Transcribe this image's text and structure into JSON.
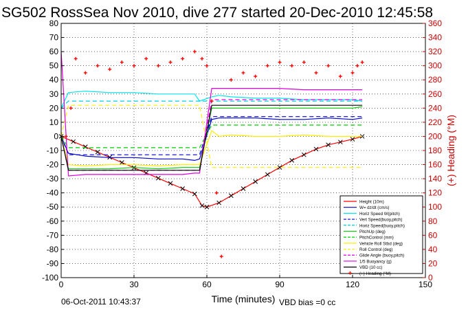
{
  "chart_data": {
    "type": "line",
    "title": "SG502 RossSea Nov 2010, dive 277 started 20-Dec-2010 12:45:58",
    "xlabel": "Time (minutes)",
    "ylabel": "",
    "y2label": "(+) Heading (°M)",
    "xlim": [
      0,
      150
    ],
    "ylim": [
      -100,
      80
    ],
    "y2lim": [
      0,
      360
    ],
    "xticks": [
      "0",
      "30",
      "60",
      "90",
      "120",
      "150"
    ],
    "yticks": [
      "80",
      "70",
      "60",
      "50",
      "40",
      "30",
      "20",
      "10",
      "0",
      "-10",
      "-20",
      "-30",
      "-40",
      "-50",
      "-60",
      "-70",
      "-80",
      "-90",
      "-100"
    ],
    "y2ticks": [
      "360",
      "340",
      "320",
      "300",
      "280",
      "260",
      "240",
      "220",
      "200",
      "180",
      "160",
      "140",
      "120",
      "100",
      "80",
      "60",
      "40",
      "20",
      "0"
    ],
    "grid": true,
    "legend_position": "bottom-right",
    "footer_left": "06-Oct-2011 10:43:37",
    "footer_right": "VBD bias =0 cc",
    "series": [
      {
        "name": "Height (10m)",
        "color": "#ff0000",
        "style": "solid-marker-x",
        "x": [
          0,
          5,
          10,
          15,
          20,
          25,
          30,
          35,
          40,
          45,
          50,
          55,
          58,
          60,
          65,
          70,
          75,
          80,
          85,
          90,
          95,
          100,
          105,
          110,
          115,
          120,
          124
        ],
        "y": [
          0,
          -3.7,
          -7.4,
          -11.1,
          -14.8,
          -18.5,
          -22.2,
          -25.9,
          -29.6,
          -33.3,
          -37.0,
          -40.7,
          -49,
          -50,
          -47,
          -42,
          -37,
          -32,
          -27,
          -22,
          -17,
          -13,
          -9,
          -6,
          -4,
          -2,
          0
        ]
      },
      {
        "name": "W= dz/dt (cm/s)",
        "color": "#0000cc",
        "style": "solid",
        "x": [
          0,
          3,
          10,
          20,
          30,
          40,
          50,
          55,
          57,
          62,
          65,
          70,
          80,
          90,
          100,
          110,
          120,
          124
        ],
        "y": [
          0,
          -12,
          -14,
          -15,
          -15,
          -16,
          -16,
          -17,
          -16,
          12,
          13,
          13,
          13,
          12,
          12,
          13,
          12,
          13
        ]
      },
      {
        "name": "Horiz Speed W(pitch)",
        "color": "#00e5ee",
        "style": "solid",
        "x": [
          0,
          3,
          10,
          20,
          30,
          40,
          50,
          55,
          57,
          62,
          65,
          70,
          80,
          90,
          100,
          110,
          120,
          124
        ],
        "y": [
          20,
          31,
          32,
          31,
          31,
          30,
          30,
          30,
          25,
          28,
          29,
          28,
          27,
          27,
          26,
          26,
          26,
          25
        ]
      },
      {
        "name": "Vert Speed(buoy,pitch)",
        "color": "#0000cc",
        "style": "dashed",
        "x": [
          0,
          3,
          10,
          20,
          30,
          40,
          50,
          55,
          57,
          62,
          65,
          70,
          80,
          90,
          100,
          110,
          120,
          124
        ],
        "y": [
          0,
          -13,
          -13,
          -13,
          -13,
          -13,
          -13,
          -13,
          -13,
          14,
          14,
          14,
          14,
          14,
          14,
          14,
          14,
          14
        ]
      },
      {
        "name": "Horiz Speed(buoy,pitch)",
        "color": "#00ccdd",
        "style": "dashed",
        "x": [
          0,
          3,
          10,
          20,
          30,
          40,
          50,
          55,
          57,
          62,
          65,
          70,
          80,
          90,
          100,
          110,
          120,
          124
        ],
        "y": [
          20,
          25,
          25,
          25,
          25,
          25,
          25,
          25,
          25,
          25,
          25,
          25,
          25,
          25,
          25,
          25,
          25,
          25
        ]
      },
      {
        "name": "PitchUp (deg)",
        "color": "#00cc00",
        "style": "solid",
        "x": [
          0,
          3,
          10,
          20,
          30,
          40,
          50,
          55,
          57,
          62,
          65,
          70,
          80,
          90,
          100,
          110,
          120,
          124
        ],
        "y": [
          0,
          -23,
          -23,
          -23,
          -22,
          -23,
          -22,
          -22,
          -22,
          20,
          20,
          20,
          20,
          20,
          20,
          20,
          20,
          21
        ]
      },
      {
        "name": "PitchControl (mm)",
        "color": "#00cc00",
        "style": "dashed",
        "x": [
          0,
          3,
          10,
          20,
          30,
          40,
          50,
          55,
          57,
          62,
          65,
          70,
          80,
          90,
          100,
          110,
          120,
          124
        ],
        "y": [
          0,
          -8,
          -8,
          -8,
          -8,
          -8,
          -8,
          -8,
          -8,
          8,
          8,
          8,
          8,
          8,
          8,
          8,
          8,
          8
        ]
      },
      {
        "name": "Vehicle Roll Stbd (deg)",
        "color": "#ffee00",
        "style": "solid-spiky",
        "x": [
          0,
          3,
          10,
          20,
          30,
          40,
          50,
          55,
          57,
          62,
          65,
          70,
          80,
          90,
          100,
          110,
          120,
          124
        ],
        "y": [
          0,
          -20,
          -21,
          -20,
          -20,
          -21,
          -20,
          -20,
          -20,
          4,
          0,
          1,
          0,
          0,
          1,
          0,
          0,
          0
        ]
      },
      {
        "name": "Roll Control (deg)",
        "color": "#ffee00",
        "style": "dashed",
        "x": [
          0,
          3,
          10,
          20,
          30,
          40,
          50,
          55,
          57,
          62,
          65,
          70,
          80,
          90,
          100,
          110,
          120,
          124
        ],
        "y": [
          0,
          22,
          22,
          22,
          22,
          22,
          22,
          22,
          22,
          -22,
          -22,
          -22,
          -22,
          -22,
          -22,
          -22,
          -22,
          -22
        ]
      },
      {
        "name": "Glide Angle (buoy,pitch)",
        "color": "#dd00dd",
        "style": "dashed",
        "x": [
          0,
          3,
          10,
          20,
          30,
          40,
          50,
          55,
          57,
          62,
          65,
          70,
          80,
          90,
          100,
          110,
          120,
          124
        ],
        "y": [
          0,
          -24,
          -24,
          -24,
          -24,
          -24,
          -24,
          -24,
          -24,
          26,
          26,
          26,
          26,
          26,
          26,
          26,
          26,
          26
        ]
      },
      {
        "name": "1/5 Buoyancy (g)",
        "color": "#dd00dd",
        "style": "solid",
        "x": [
          0,
          3,
          10,
          20,
          30,
          40,
          50,
          55,
          57,
          62,
          65,
          70,
          80,
          90,
          100,
          110,
          120,
          124
        ],
        "y": [
          60,
          -28,
          -27,
          -27,
          -27,
          -27,
          -27,
          -26,
          -26,
          34,
          34,
          34,
          34,
          34,
          33,
          33,
          33,
          33
        ]
      },
      {
        "name": "VBD (10 cc)",
        "color": "#000000",
        "style": "solid",
        "x": [
          0,
          3,
          10,
          20,
          30,
          40,
          50,
          55,
          57,
          62,
          65,
          70,
          80,
          90,
          100,
          110,
          120,
          124
        ],
        "y": [
          0,
          -24,
          -24,
          -24,
          -24,
          -24,
          -24,
          -24,
          -24,
          22,
          22,
          22,
          22,
          22,
          22,
          22,
          22,
          22
        ]
      },
      {
        "name": "(+) Heading (°M)",
        "color": "#ff0000",
        "style": "markers-plus",
        "axis": "right",
        "x": [
          2,
          4,
          6,
          10,
          15,
          20,
          25,
          30,
          35,
          40,
          45,
          50,
          55,
          58,
          60,
          62,
          64,
          66,
          70,
          75,
          80,
          85,
          90,
          95,
          100,
          105,
          110,
          115,
          120,
          122,
          124
        ],
        "y": [
          200,
          240,
          310,
          290,
          300,
          295,
          305,
          300,
          310,
          300,
          305,
          310,
          320,
          310,
          300,
          250,
          120,
          30,
          280,
          290,
          285,
          300,
          305,
          300,
          305,
          290,
          300,
          285,
          290,
          300,
          305
        ]
      }
    ]
  }
}
